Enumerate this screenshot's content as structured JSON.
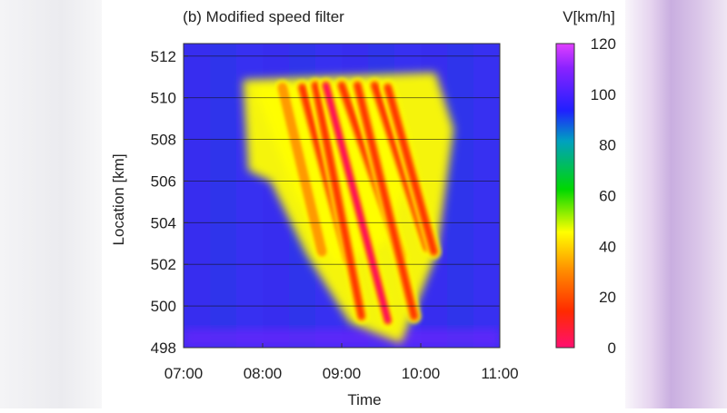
{
  "chart_data": {
    "type": "heatmap",
    "title": "(b) Modified speed filter",
    "xlabel": "Time",
    "ylabel": "Location [km]",
    "x_ticks": [
      "07:00",
      "08:00",
      "09:00",
      "10:00",
      "11:00"
    ],
    "y_ticks": [
      "498",
      "500",
      "502",
      "504",
      "506",
      "508",
      "510",
      "512"
    ],
    "xlim_hours": [
      7.0,
      11.0
    ],
    "ylim_km": [
      498,
      512.6
    ],
    "colorbar": {
      "label": "V[km/h]",
      "ticks": [
        "0",
        "20",
        "40",
        "60",
        "80",
        "100",
        "120"
      ],
      "range": [
        0,
        120
      ],
      "colors": [
        "#ff0060",
        "#ff2a00",
        "#ff9a00",
        "#ffff00",
        "#00e000",
        "#0060ff",
        "#2020ff",
        "#cc33ff"
      ]
    },
    "free_flow_speed_kmh": 95,
    "congested_region": {
      "start_time": "07:45",
      "end_time": "10:25",
      "upstream_km": 498.2,
      "downstream_km": 510.6
    },
    "stop_and_go_waves": [
      {
        "start_time": "08:15",
        "start_km": 510.5,
        "end_time": "08:45",
        "end_km": 502.6,
        "min_speed": 35
      },
      {
        "start_time": "08:30",
        "start_km": 510.5,
        "end_time": "09:05",
        "end_km": 502.2,
        "min_speed": 25
      },
      {
        "start_time": "08:40",
        "start_km": 510.6,
        "end_time": "09:15",
        "end_km": 499.5,
        "min_speed": 10
      },
      {
        "start_time": "08:48",
        "start_km": 510.6,
        "end_time": "09:35",
        "end_km": 499.3,
        "min_speed": 8
      },
      {
        "start_time": "09:00",
        "start_km": 510.6,
        "end_time": "09:45",
        "end_km": 502.4,
        "min_speed": 10
      },
      {
        "start_time": "09:12",
        "start_km": 510.6,
        "end_time": "09:55",
        "end_km": 499.5,
        "min_speed": 15
      },
      {
        "start_time": "09:25",
        "start_km": 510.6,
        "end_time": "10:05",
        "end_km": 502.8,
        "min_speed": 15
      },
      {
        "start_time": "09:35",
        "start_km": 510.5,
        "end_time": "10:10",
        "end_km": 502.6,
        "min_speed": 20
      }
    ],
    "grid": "horizontal"
  }
}
